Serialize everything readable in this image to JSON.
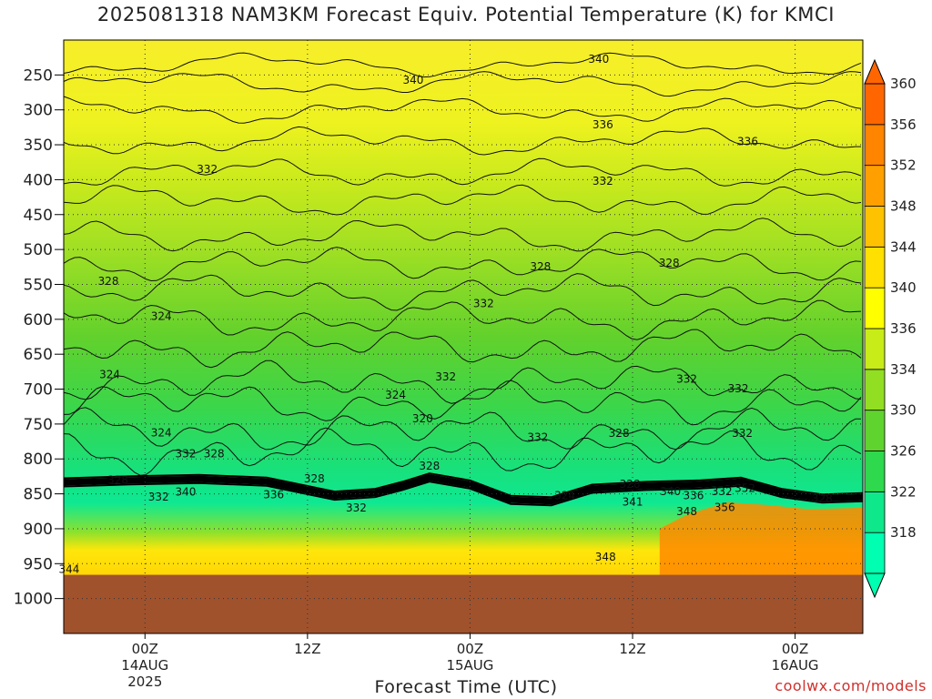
{
  "title": "2025081318 NAM3KM Forecast Equiv. Potential Temperature (K) for KMCI",
  "xaxis_title": "Forecast Time (UTC)",
  "credit": "coolwx.com/models",
  "colors": {
    "ground": "#a0522d",
    "scale": [
      "#00ffb0",
      "#0ee88a",
      "#2fd94d",
      "#5fd42e",
      "#92de22",
      "#c8ec18",
      "#ffff00",
      "#ffe000",
      "#ffc200",
      "#ffa000",
      "#ff8400",
      "#ff6600"
    ]
  },
  "chart_data": {
    "type": "heatmap",
    "title": "2025081318 NAM3KM Forecast Equiv. Potential Temperature (K) for KMCI",
    "xlabel": "Forecast Time (UTC)",
    "ylabel": "",
    "y_axis": "pressure (hPa), inverted",
    "ylim": [
      1050,
      200
    ],
    "yticks": [
      250,
      300,
      350,
      400,
      450,
      500,
      550,
      600,
      650,
      700,
      750,
      800,
      850,
      900,
      950,
      1000
    ],
    "xticks": [
      {
        "hour": 0,
        "label": "00Z",
        "sub": "14AUG",
        "sub2": "2025"
      },
      {
        "hour": 12,
        "label": "12Z",
        "sub": "",
        "sub2": ""
      },
      {
        "hour": 24,
        "label": "00Z",
        "sub": "15AUG",
        "sub2": ""
      },
      {
        "hour": 36,
        "label": "12Z",
        "sub": "",
        "sub2": ""
      },
      {
        "hour": 48,
        "label": "00Z",
        "sub": "16AUG",
        "sub2": ""
      }
    ],
    "xlim_hours": [
      -6,
      53
    ],
    "colorbar": {
      "min": 316,
      "max": 362,
      "labels": [
        318,
        322,
        326,
        330,
        334,
        336,
        340,
        344,
        348,
        352,
        356,
        360
      ]
    },
    "contour_labels": [
      {
        "text": "340",
        "h": 33.5,
        "p": 228
      },
      {
        "text": "340",
        "h": 19.8,
        "p": 258
      },
      {
        "text": "336",
        "h": 33.8,
        "p": 322
      },
      {
        "text": "336",
        "h": 44.5,
        "p": 346
      },
      {
        "text": "332",
        "h": 4.6,
        "p": 386
      },
      {
        "text": "332",
        "h": 33.8,
        "p": 403
      },
      {
        "text": "328",
        "h": -2.7,
        "p": 546
      },
      {
        "text": "328",
        "h": 29.2,
        "p": 525
      },
      {
        "text": "328",
        "h": 38.7,
        "p": 520
      },
      {
        "text": "324",
        "h": 1.2,
        "p": 596
      },
      {
        "text": "332",
        "h": 25.0,
        "p": 578
      },
      {
        "text": "324",
        "h": -2.6,
        "p": 680
      },
      {
        "text": "332",
        "h": 22.2,
        "p": 683
      },
      {
        "text": "324",
        "h": 18.5,
        "p": 709
      },
      {
        "text": "332",
        "h": 40.0,
        "p": 686
      },
      {
        "text": "332",
        "h": 43.8,
        "p": 700
      },
      {
        "text": "320",
        "h": 20.5,
        "p": 743
      },
      {
        "text": "324",
        "h": 1.2,
        "p": 763
      },
      {
        "text": "332",
        "h": 29.0,
        "p": 770
      },
      {
        "text": "328",
        "h": 35.0,
        "p": 764
      },
      {
        "text": "332",
        "h": 44.1,
        "p": 764
      },
      {
        "text": "332",
        "h": 3.0,
        "p": 793
      },
      {
        "text": "328",
        "h": 5.1,
        "p": 793
      },
      {
        "text": "328",
        "h": 21.0,
        "p": 811
      },
      {
        "text": "328",
        "h": -2.0,
        "p": 831
      },
      {
        "text": "328",
        "h": 12.5,
        "p": 829
      },
      {
        "text": "332",
        "h": 1.0,
        "p": 855
      },
      {
        "text": "340",
        "h": 3.0,
        "p": 848
      },
      {
        "text": "336",
        "h": 9.5,
        "p": 852
      },
      {
        "text": "332",
        "h": 15.6,
        "p": 871
      },
      {
        "text": "324",
        "h": 31.0,
        "p": 853
      },
      {
        "text": "328",
        "h": 35.8,
        "p": 837
      },
      {
        "text": "341",
        "h": 36.0,
        "p": 862
      },
      {
        "text": "340",
        "h": 38.8,
        "p": 847
      },
      {
        "text": "336",
        "h": 40.5,
        "p": 853
      },
      {
        "text": "332",
        "h": 42.6,
        "p": 847
      },
      {
        "text": "352",
        "h": 44.3,
        "p": 843
      },
      {
        "text": "348",
        "h": 40.0,
        "p": 876
      },
      {
        "text": "356",
        "h": 42.8,
        "p": 870
      },
      {
        "text": "328",
        "h": 50.0,
        "p": 858
      },
      {
        "text": "348",
        "h": 34.0,
        "p": 941
      },
      {
        "text": "344",
        "h": -5.6,
        "p": 959
      }
    ]
  }
}
